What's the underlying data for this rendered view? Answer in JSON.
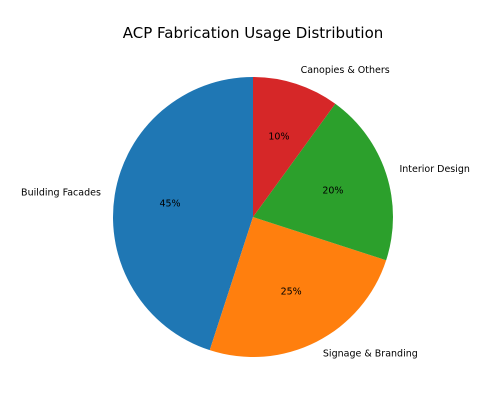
{
  "chart_data": {
    "type": "pie",
    "title": "ACP Fabrication Usage Distribution",
    "slices": [
      {
        "label": "Building Facades",
        "value": 45,
        "pct_label": "45%",
        "color": "#1f77b4"
      },
      {
        "label": "Signage & Branding",
        "value": 25,
        "pct_label": "25%",
        "color": "#ff7f0e"
      },
      {
        "label": "Interior Design",
        "value": 20,
        "pct_label": "20%",
        "color": "#2ca02c"
      },
      {
        "label": "Canopies & Others",
        "value": 10,
        "pct_label": "10%",
        "color": "#d62728"
      }
    ],
    "start_angle_deg": 90,
    "direction": "counterclockwise",
    "legend": "none"
  }
}
